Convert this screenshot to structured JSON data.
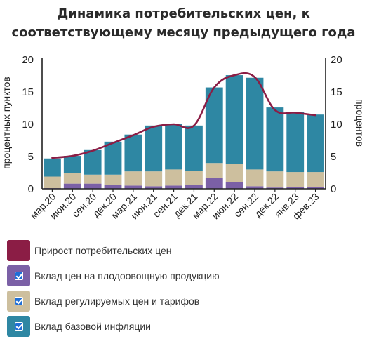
{
  "title_lines": [
    "Динамика потребительских цен, к",
    "соответствующему месяцу предыдущего года"
  ],
  "chart_data": {
    "type": "bar",
    "title": "Динамика потребительских цен, к соответствующему месяцу предыдущего года",
    "ylabel_left": "процентных пунктов",
    "ylabel_right": "процентов",
    "ylim": [
      0,
      20
    ],
    "yticks": [
      "0",
      "5",
      "10",
      "15",
      "20"
    ],
    "categories": [
      "мар.20",
      "июн.20",
      "сен.20",
      "дек.20",
      "мар.21",
      "июн.21",
      "сен.21",
      "дек.21",
      "мар.22",
      "июн.22",
      "сен.22",
      "дек.22",
      "янв.23",
      "фев.23"
    ],
    "stacked_series": [
      {
        "name": "Вклад цен на плодоовощную продукцию",
        "color": "#7b60a6",
        "values": [
          0.1,
          0.8,
          0.8,
          0.6,
          0.5,
          0.4,
          0.5,
          0.6,
          1.7,
          1.0,
          0.4,
          0.2,
          0.3,
          0.3
        ]
      },
      {
        "name": "Вклад регулируемых цен и тарифов",
        "color": "#cdbf9e",
        "values": [
          1.8,
          1.6,
          1.4,
          1.6,
          2.2,
          2.3,
          2.5,
          2.2,
          2.3,
          2.9,
          2.6,
          2.5,
          2.3,
          2.3
        ]
      },
      {
        "name": "Вклад базовой инфляции",
        "color": "#2e87a3",
        "values": [
          2.8,
          2.7,
          3.8,
          5.1,
          5.7,
          7.1,
          7.0,
          7.0,
          11.7,
          13.7,
          14.2,
          9.9,
          9.3,
          8.9
        ]
      }
    ],
    "line_series": {
      "name": "Прирост потребительских цен",
      "color": "#8b1d45",
      "values": [
        4.8,
        5.1,
        5.9,
        7.1,
        8.3,
        9.6,
        10.0,
        9.8,
        15.7,
        17.6,
        17.3,
        12.2,
        11.8,
        11.4
      ]
    },
    "grid": false,
    "legend_position": "bottom-left"
  },
  "legend": [
    {
      "label": "Прирост потребительских цен",
      "color": "#8b1d45",
      "checkbox": false
    },
    {
      "label": "Вклад цен на плодоовощную продукцию",
      "color": "#7b60a6",
      "checkbox": true
    },
    {
      "label": "Вклад регулируемых цен и тарифов",
      "color": "#cdbf9e",
      "checkbox": true
    },
    {
      "label": "Вклад базовой инфляции",
      "color": "#2e87a3",
      "checkbox": true
    }
  ]
}
